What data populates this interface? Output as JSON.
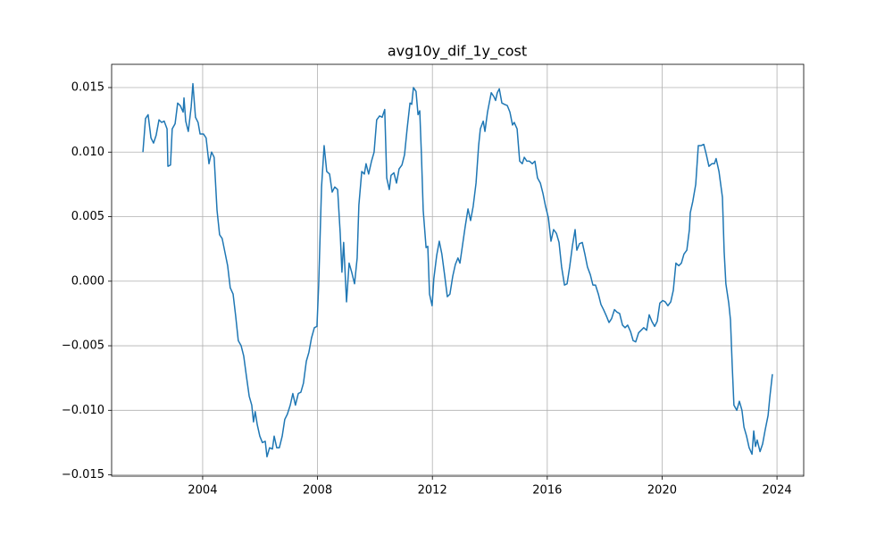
{
  "chart_data": {
    "type": "line",
    "title": "avg10y_dif_1y_cost",
    "xlim": [
      2000.83,
      2024.93
    ],
    "xticks": [
      2004,
      2008,
      2012,
      2016,
      2020,
      2024
    ],
    "ylim": [
      -0.0151,
      0.0168
    ],
    "yticks": [
      {
        "value": -0.015,
        "label": "−0.015"
      },
      {
        "value": -0.01,
        "label": "−0.010"
      },
      {
        "value": -0.005,
        "label": "−0.005"
      },
      {
        "value": 0,
        "label": "0.000"
      },
      {
        "value": 0.005,
        "label": "0.005"
      },
      {
        "value": 0.01,
        "label": "0.010"
      },
      {
        "value": 0.015,
        "label": "0.015"
      }
    ],
    "grid": true,
    "series": [
      {
        "color": "#1f77b4",
        "x": [
          2001.92,
          2002.01,
          2002.1,
          2002.2,
          2002.29,
          2002.38,
          2002.48,
          2002.57,
          2002.66,
          2002.76,
          2002.79,
          2002.88,
          2002.94,
          2003.04,
          2003.13,
          2003.22,
          2003.32,
          2003.35,
          2003.41,
          2003.5,
          2003.6,
          2003.66,
          2003.75,
          2003.84,
          2003.91,
          2004.03,
          2004.12,
          2004.22,
          2004.31,
          2004.4,
          2004.5,
          2004.59,
          2004.68,
          2004.78,
          2004.87,
          2004.96,
          2005.06,
          2005.15,
          2005.24,
          2005.34,
          2005.43,
          2005.52,
          2005.62,
          2005.71,
          2005.77,
          2005.83,
          2005.9,
          2005.99,
          2006.08,
          2006.18,
          2006.24,
          2006.33,
          2006.43,
          2006.49,
          2006.58,
          2006.67,
          2006.77,
          2006.86,
          2006.95,
          2007.05,
          2007.14,
          2007.23,
          2007.33,
          2007.42,
          2007.51,
          2007.61,
          2007.7,
          2007.79,
          2007.89,
          2007.98,
          2008.04,
          2008.14,
          2008.23,
          2008.32,
          2008.42,
          2008.51,
          2008.6,
          2008.7,
          2008.79,
          2008.85,
          2008.91,
          2009.01,
          2009.1,
          2009.19,
          2009.29,
          2009.38,
          2009.44,
          2009.54,
          2009.63,
          2009.69,
          2009.78,
          2009.88,
          2009.97,
          2010.06,
          2010.16,
          2010.25,
          2010.34,
          2010.41,
          2010.5,
          2010.56,
          2010.66,
          2010.75,
          2010.84,
          2010.94,
          2011.03,
          2011.12,
          2011.22,
          2011.28,
          2011.34,
          2011.43,
          2011.5,
          2011.56,
          2011.62,
          2011.68,
          2011.78,
          2011.84,
          2011.9,
          2011.99,
          2012.05,
          2012.15,
          2012.24,
          2012.33,
          2012.43,
          2012.52,
          2012.61,
          2012.71,
          2012.8,
          2012.89,
          2012.96,
          2013.05,
          2013.14,
          2013.24,
          2013.33,
          2013.42,
          2013.52,
          2013.61,
          2013.67,
          2013.77,
          2013.83,
          2013.92,
          2013.98,
          2014.05,
          2014.14,
          2014.2,
          2014.26,
          2014.33,
          2014.42,
          2014.51,
          2014.61,
          2014.7,
          2014.79,
          2014.85,
          2014.95,
          2015.04,
          2015.13,
          2015.2,
          2015.29,
          2015.38,
          2015.48,
          2015.57,
          2015.66,
          2015.76,
          2015.85,
          2015.94,
          2016.04,
          2016.13,
          2016.22,
          2016.32,
          2016.41,
          2016.5,
          2016.6,
          2016.69,
          2016.78,
          2016.88,
          2016.97,
          2017.03,
          2017.12,
          2017.22,
          2017.31,
          2017.4,
          2017.5,
          2017.59,
          2017.68,
          2017.78,
          2017.87,
          2017.96,
          2018.06,
          2018.15,
          2018.24,
          2018.34,
          2018.43,
          2018.52,
          2018.62,
          2018.71,
          2018.8,
          2018.9,
          2018.99,
          2019.08,
          2019.18,
          2019.27,
          2019.36,
          2019.46,
          2019.55,
          2019.64,
          2019.74,
          2019.83,
          2019.92,
          2020.02,
          2020.11,
          2020.2,
          2020.3,
          2020.39,
          2020.48,
          2020.58,
          2020.67,
          2020.76,
          2020.86,
          2020.95,
          2020.98,
          2021.07,
          2021.17,
          2021.26,
          2021.35,
          2021.45,
          2021.54,
          2021.63,
          2021.73,
          2021.82,
          2021.88,
          2021.98,
          2022.04,
          2022.1,
          2022.16,
          2022.22,
          2022.32,
          2022.38,
          2022.44,
          2022.5,
          2022.6,
          2022.69,
          2022.78,
          2022.85,
          2022.94,
          2023.03,
          2023.13,
          2023.19,
          2023.25,
          2023.31,
          2023.41,
          2023.5,
          2023.59,
          2023.69,
          2023.75,
          2023.84
        ],
        "values": [
          0.01,
          0.0126,
          0.0129,
          0.0111,
          0.0107,
          0.0113,
          0.0125,
          0.0123,
          0.0124,
          0.0118,
          0.0089,
          0.009,
          0.0118,
          0.0122,
          0.0138,
          0.0136,
          0.0131,
          0.0142,
          0.0124,
          0.0116,
          0.0135,
          0.0153,
          0.0127,
          0.0123,
          0.0114,
          0.0114,
          0.0111,
          0.0091,
          0.01,
          0.0096,
          0.0055,
          0.0036,
          0.0033,
          0.0022,
          0.0012,
          -0.0005,
          -0.001,
          -0.0027,
          -0.0046,
          -0.005,
          -0.0058,
          -0.0073,
          -0.0089,
          -0.0096,
          -0.0109,
          -0.0101,
          -0.0111,
          -0.012,
          -0.0125,
          -0.0124,
          -0.0136,
          -0.0129,
          -0.013,
          -0.012,
          -0.0129,
          -0.0129,
          -0.012,
          -0.0107,
          -0.0103,
          -0.0096,
          -0.0087,
          -0.0096,
          -0.0087,
          -0.0086,
          -0.0079,
          -0.0062,
          -0.0055,
          -0.0044,
          -0.0036,
          -0.0035,
          -0.0003,
          0.0073,
          0.0105,
          0.0085,
          0.0083,
          0.0069,
          0.0073,
          0.0071,
          0.0037,
          0.0007,
          0.003,
          -0.0016,
          0.0014,
          0.0007,
          -0.0002,
          0.0018,
          0.0059,
          0.0085,
          0.0083,
          0.0091,
          0.0083,
          0.0093,
          0.01,
          0.0125,
          0.0128,
          0.0127,
          0.0133,
          0.008,
          0.0071,
          0.0082,
          0.0084,
          0.0076,
          0.0087,
          0.009,
          0.0098,
          0.0118,
          0.0138,
          0.0137,
          0.015,
          0.0147,
          0.0129,
          0.0132,
          0.0097,
          0.0055,
          0.0026,
          0.0027,
          -0.001,
          -0.0019,
          0.0002,
          0.002,
          0.0031,
          0.0021,
          0.0004,
          -0.0012,
          -0.001,
          0.0004,
          0.0013,
          0.0018,
          0.0014,
          0.0028,
          0.0042,
          0.0056,
          0.0047,
          0.0058,
          0.0076,
          0.0105,
          0.0118,
          0.0124,
          0.0116,
          0.0131,
          0.0138,
          0.0146,
          0.0143,
          0.014,
          0.0146,
          0.0149,
          0.0138,
          0.0137,
          0.0136,
          0.0131,
          0.0121,
          0.0123,
          0.0118,
          0.0093,
          0.0091,
          0.0096,
          0.0093,
          0.0093,
          0.0091,
          0.0093,
          0.008,
          0.0076,
          0.0068,
          0.0058,
          0.0049,
          0.0031,
          0.004,
          0.0037,
          0.003,
          0.0011,
          -0.0003,
          -0.0002,
          0.0011,
          0.0028,
          0.004,
          0.0024,
          0.0029,
          0.003,
          0.0021,
          0.0011,
          0.0005,
          -0.0003,
          -0.0003,
          -0.001,
          -0.0018,
          -0.0022,
          -0.0027,
          -0.0032,
          -0.0029,
          -0.0022,
          -0.0024,
          -0.0025,
          -0.0034,
          -0.0036,
          -0.0034,
          -0.0039,
          -0.0046,
          -0.0047,
          -0.004,
          -0.0038,
          -0.0036,
          -0.0038,
          -0.0026,
          -0.0031,
          -0.0035,
          -0.0031,
          -0.0017,
          -0.0015,
          -0.0016,
          -0.0019,
          -0.0016,
          -0.0007,
          0.0014,
          0.0012,
          0.0014,
          0.0021,
          0.0024,
          0.004,
          0.0053,
          0.0062,
          0.0075,
          0.0105,
          0.0105,
          0.0106,
          0.0098,
          0.0089,
          0.0091,
          0.0091,
          0.0095,
          0.0085,
          0.0075,
          0.0065,
          0.0023,
          -0.0002,
          -0.0017,
          -0.003,
          -0.0065,
          -0.0096,
          -0.01,
          -0.0093,
          -0.01,
          -0.0113,
          -0.012,
          -0.0129,
          -0.0134,
          -0.0116,
          -0.0128,
          -0.0123,
          -0.0132,
          -0.0126,
          -0.0115,
          -0.0104,
          -0.009,
          -0.0072
        ]
      }
    ]
  }
}
